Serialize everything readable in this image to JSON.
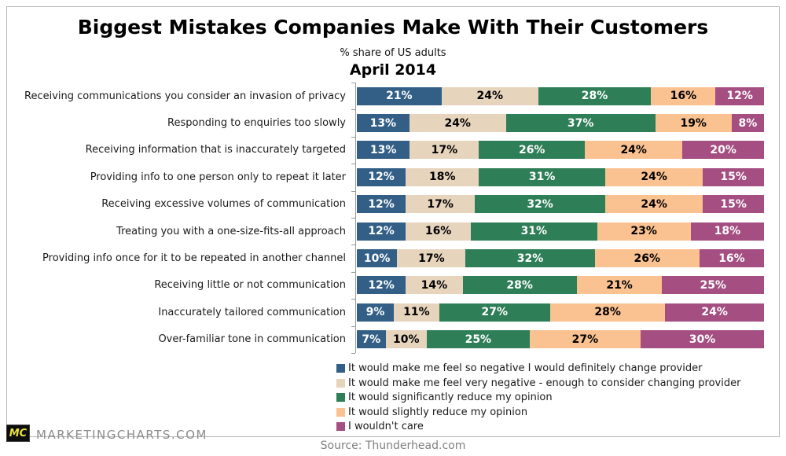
{
  "title": "Biggest Mistakes Companies Make With Their Customers",
  "subtitle": "% share of US adults",
  "date_label": "April 2014",
  "chart_data": {
    "type": "bar",
    "stacked": true,
    "orientation": "horizontal",
    "unit": "%",
    "xlim": [
      0,
      100
    ],
    "grid": false,
    "legend_position": "bottom",
    "categories": [
      "Receiving communications you consider an invasion of privacy",
      "Responding to enquiries too slowly",
      "Receiving information that is inaccurately targeted",
      "Providing info to one person only to repeat it later",
      "Receiving excessive volumes of communication",
      "Treating you with a one-size-fits-all approach",
      "Providing info once for it to be repeated in another channel",
      "Receiving little or not communication",
      "Inaccurately tailored communication",
      "Over-familiar tone in communication"
    ],
    "series": [
      {
        "name": "It would make me feel so negative I would definitely change provider",
        "color": "#335F87",
        "label_color": "#FFFFFF",
        "values": [
          21,
          13,
          13,
          12,
          12,
          12,
          10,
          12,
          9,
          7
        ]
      },
      {
        "name": "It would make me feel very negative - enough to consider changing provider",
        "color": "#E7D4BD",
        "label_color": "#000000",
        "values": [
          24,
          24,
          17,
          18,
          17,
          16,
          17,
          14,
          11,
          10
        ]
      },
      {
        "name": "It would significantly reduce my opinion",
        "color": "#2E7E58",
        "label_color": "#FFFFFF",
        "values": [
          28,
          37,
          26,
          31,
          32,
          31,
          32,
          28,
          27,
          25
        ]
      },
      {
        "name": "It would slightly reduce my opinion",
        "color": "#FAC191",
        "label_color": "#000000",
        "values": [
          16,
          19,
          24,
          24,
          24,
          23,
          26,
          21,
          28,
          27
        ]
      },
      {
        "name": "I wouldn't care",
        "color": "#A44E82",
        "label_color": "#FFFFFF",
        "values": [
          12,
          8,
          20,
          15,
          15,
          18,
          16,
          25,
          24,
          30
        ]
      }
    ]
  },
  "footer": {
    "logo_text": "MC",
    "brand": "MARKETINGCHARTS.COM",
    "source": "Source: Thunderhead.com"
  }
}
